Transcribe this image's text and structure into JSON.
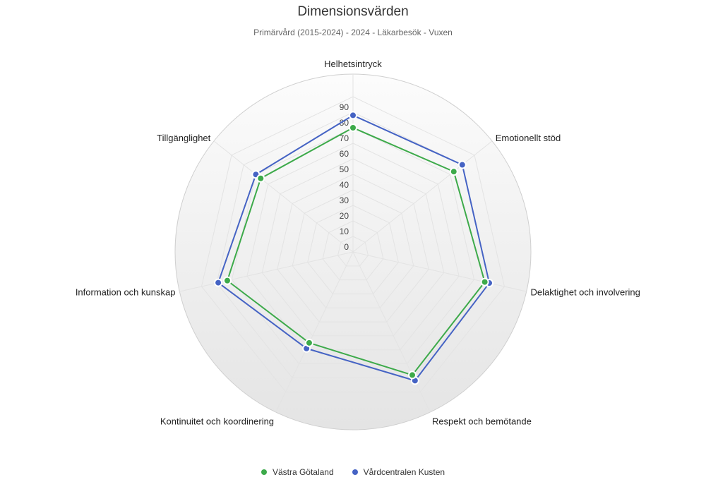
{
  "chart_data": {
    "type": "radar",
    "title": "Dimensionsvärden",
    "subtitle": "Primärvård (2015-2024) - 2024 - Läkarbesök - Vuxen",
    "axes": [
      "Helhetsintryck",
      "Emotionellt stöd",
      "Delaktighet och involvering",
      "Respekt och bemötande",
      "Kontinuitet och koordinering",
      "Information och kunskap",
      "Tillgänglighet"
    ],
    "ticks": [
      "0",
      "10",
      "20",
      "30",
      "40",
      "50",
      "60",
      "70",
      "80",
      "90"
    ],
    "range": [
      0,
      100
    ],
    "series": [
      {
        "name": "Västra Götaland",
        "color": "#3daa4a",
        "values": [
          80,
          83,
          87,
          88,
          65,
          83,
          76
        ]
      },
      {
        "name": "Vårdcentralen Kusten",
        "color": "#4563c4",
        "values": [
          88,
          90,
          90,
          92,
          69,
          89,
          80
        ]
      }
    ],
    "legend_position": "bottom-center",
    "grid": true
  }
}
